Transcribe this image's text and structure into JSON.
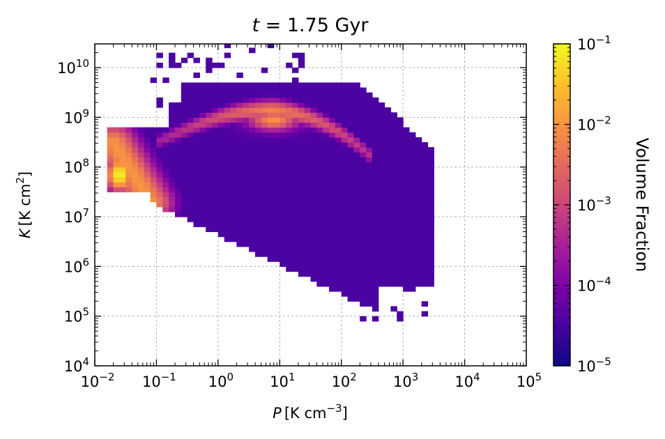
{
  "chart_data": {
    "type": "heatmap",
    "title": {
      "prefix": "t",
      "eq": " = 1.75 ",
      "unit": "Gyr"
    },
    "xlabel": {
      "var": "P",
      "unit": "[K cm",
      "exp": "−3",
      "close": "]"
    },
    "ylabel": {
      "var": "K",
      "unit": "[K cm",
      "exp": "2",
      "close": "]"
    },
    "x_scale": "log",
    "y_scale": "log",
    "x_range": [
      0.01,
      100000
    ],
    "y_range": [
      10000,
      30000000000
    ],
    "x_ticks": [
      {
        "base": "10",
        "exp": "−2"
      },
      {
        "base": "10",
        "exp": "−1"
      },
      {
        "base": "10",
        "exp": "0"
      },
      {
        "base": "10",
        "exp": "1"
      },
      {
        "base": "10",
        "exp": "2"
      },
      {
        "base": "10",
        "exp": "3"
      },
      {
        "base": "10",
        "exp": "4"
      },
      {
        "base": "10",
        "exp": "5"
      }
    ],
    "y_ticks": [
      {
        "base": "10",
        "exp": "4"
      },
      {
        "base": "10",
        "exp": "5"
      },
      {
        "base": "10",
        "exp": "6"
      },
      {
        "base": "10",
        "exp": "7"
      },
      {
        "base": "10",
        "exp": "8"
      },
      {
        "base": "10",
        "exp": "9"
      },
      {
        "base": "10",
        "exp": "10"
      }
    ],
    "grid": true,
    "colorbar": {
      "label": "Volume Fraction",
      "scale": "log",
      "range": [
        1e-05,
        0.1
      ],
      "colormap": "plasma",
      "ticks": [
        {
          "base": "10",
          "exp": "−5"
        },
        {
          "base": "10",
          "exp": "−4"
        },
        {
          "base": "10",
          "exp": "−3"
        },
        {
          "base": "10",
          "exp": "−2"
        },
        {
          "base": "10",
          "exp": "−1"
        }
      ]
    },
    "bins": {
      "log_x_start": -2,
      "log_y_start": 4,
      "bin_width_dex": 0.1
    },
    "occupied_regions": [
      {
        "log_x": [
          -1.8,
          -0.9
        ],
        "log_y": [
          7.6,
          8.9
        ]
      },
      {
        "log_x": [
          -1.0,
          0.2
        ],
        "log_y": [
          7.0,
          8.8
        ]
      },
      {
        "log_x": [
          0.2,
          1.1
        ],
        "log_y": [
          6.4,
          9.1
        ]
      },
      {
        "log_x": [
          1.0,
          2.4
        ],
        "log_y": [
          5.0,
          9.2
        ]
      },
      {
        "log_x": [
          2.4,
          3.5
        ],
        "log_y": [
          5.6,
          9.1
        ]
      },
      {
        "log_x": [
          -0.8,
          2.8
        ],
        "log_y": [
          8.9,
          9.6
        ]
      }
    ],
    "density_features": [
      {
        "name": "low-pressure peak",
        "log_x": -1.6,
        "log_y": 7.85,
        "log_fraction": -1.0
      },
      {
        "name": "diagonal arm",
        "log_x_from": -1.7,
        "log_y_from": 8.5,
        "log_x_to": -1.1,
        "log_y_to": 7.3,
        "log_fraction": -2.0
      },
      {
        "name": "ridge",
        "log_x_from": -1.0,
        "log_y_from": 8.5,
        "log_x_to": 2.5,
        "log_y_to": 8.2,
        "arc_peak_log_x": 0.8,
        "arc_peak_log_y": 9.15,
        "log_fraction": -2.2
      },
      {
        "name": "ridge peak",
        "log_x": 0.9,
        "log_y": 8.95,
        "log_fraction": -2.0
      }
    ]
  }
}
